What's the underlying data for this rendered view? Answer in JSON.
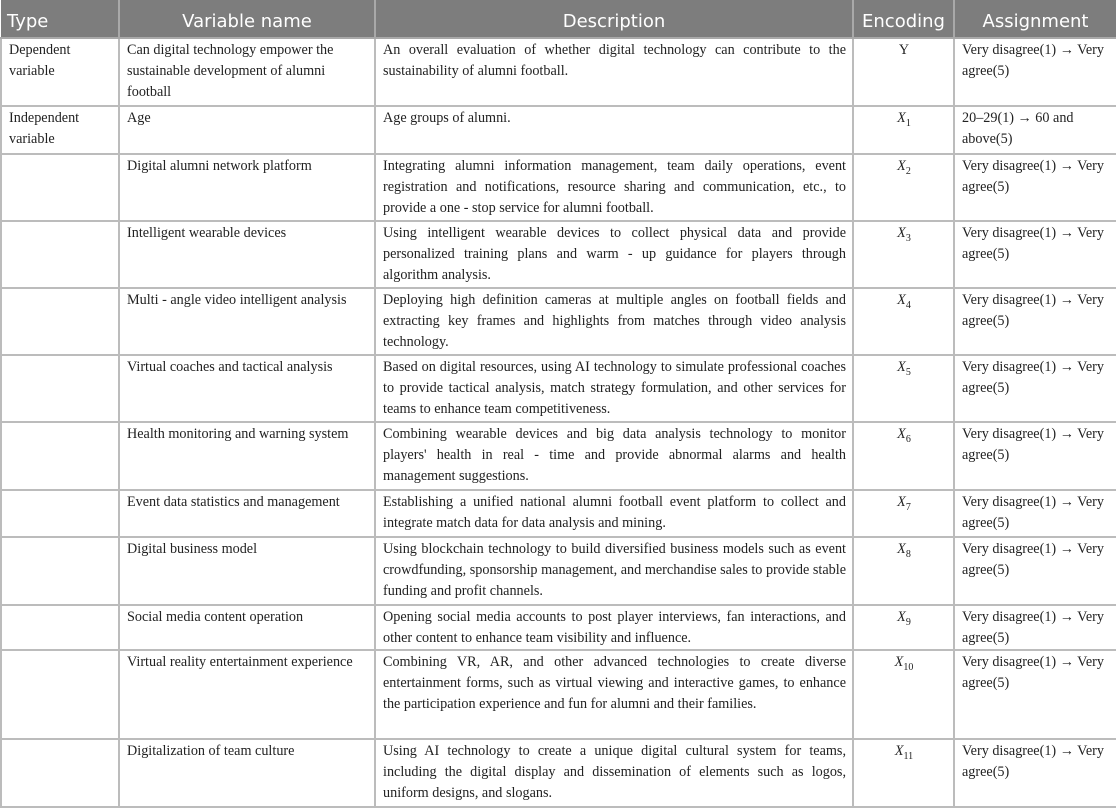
{
  "headers": [
    "Type",
    "Variable name",
    "Description",
    "Encoding",
    "Assignment"
  ],
  "rows": [
    {
      "type": "Dependent variable",
      "name": "Can digital technology empower the sustainable development of alumni football",
      "description": "An overall evaluation of whether digital technology can contribute to the sustainability of alumni football.",
      "enc_letter": "Y",
      "enc_sub": "",
      "assignment": "Very disagree(1) → Very agree(5)"
    },
    {
      "type": "Independent variable",
      "name": "Age",
      "description": "Age groups of alumni.",
      "enc_letter": "X",
      "enc_sub": "1",
      "assignment": "20–29(1) → 60 and above(5)"
    },
    {
      "type": "",
      "name": "Digital alumni network platform",
      "description": "Integrating alumni information management, team daily operations, event registration and notifications, resource sharing and communication, etc., to provide a one - stop service for alumni football.",
      "enc_letter": "X",
      "enc_sub": "2",
      "assignment": "Very disagree(1) → Very agree(5)"
    },
    {
      "type": "",
      "name": "Intelligent wearable devices",
      "description": "Using intelligent wearable devices to collect physical data and provide personalized training plans and warm - up guidance for players through algorithm analysis.",
      "enc_letter": "X",
      "enc_sub": "3",
      "assignment": "Very disagree(1) → Very agree(5)"
    },
    {
      "type": "",
      "name": "Multi - angle video intelligent analysis",
      "description": "Deploying high definition cameras at multiple angles on football fields and extracting key frames and highlights from matches through video analysis technology.",
      "enc_letter": "X",
      "enc_sub": "4",
      "assignment": "Very disagree(1) → Very agree(5)"
    },
    {
      "type": "",
      "name": "Virtual coaches and tactical analysis",
      "description": "Based on digital resources, using AI technology to simulate professional coaches to provide tactical analysis, match strategy formulation, and other services for teams to enhance team competitiveness.",
      "enc_letter": "X",
      "enc_sub": "5",
      "assignment": "Very disagree(1) → Very agree(5)"
    },
    {
      "type": "",
      "name": "Health monitoring and warning system",
      "description": "Combining wearable devices and big data analysis technology to monitor players' health in real - time and provide abnormal alarms and health management suggestions.",
      "enc_letter": "X",
      "enc_sub": "6",
      "assignment": "Very disagree(1) → Very agree(5)"
    },
    {
      "type": "",
      "name": "Event data statistics and management",
      "description": "Establishing a unified national alumni football event platform to collect and integrate match data for data analysis and mining.",
      "enc_letter": "X",
      "enc_sub": "7",
      "assignment": "Very disagree(1) → Very agree(5)"
    },
    {
      "type": "",
      "name": "Digital business model",
      "description": "Using blockchain technology to build diversified business models such as event crowdfunding, sponsorship management, and merchandise sales to provide stable funding and profit channels.",
      "enc_letter": "X",
      "enc_sub": "8",
      "assignment": "Very disagree(1) → Very agree(5)"
    },
    {
      "type": "",
      "name": "Social media content operation",
      "description": "Opening social media accounts to post player interviews, fan interactions, and other content to enhance team visibility and influence.",
      "enc_letter": "X",
      "enc_sub": "9",
      "assignment": "Very disagree(1) → Very agree(5)"
    },
    {
      "type": "",
      "name": "Virtual reality entertainment experience",
      "description": "Combining VR, AR, and other advanced technologies to create diverse entertainment forms, such as virtual viewing and interactive games, to enhance the participation experience and fun for alumni and their families.",
      "enc_letter": "X",
      "enc_sub": "10",
      "assignment": "Very disagree(1) → Very agree(5)"
    },
    {
      "type": "",
      "name": "Digitalization of team culture",
      "description": "Using AI technology to create a unique digital cultural system for teams, including the digital display and dissemination of elements such as logos, uniform designs, and slogans.",
      "enc_letter": "X",
      "enc_sub": "11",
      "assignment": "Very disagree(1) → Very agree(5)"
    }
  ]
}
